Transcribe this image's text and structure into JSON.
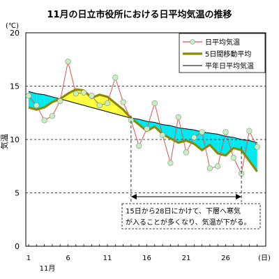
{
  "chart_data": {
    "type": "line",
    "title": "11月の日立市役所における日平均気温の推移",
    "unit_label": "(℃)",
    "ylabel": "気温",
    "x_unit_label": "(日)",
    "x_month_label": "11月",
    "x": [
      1,
      2,
      3,
      4,
      5,
      6,
      7,
      8,
      9,
      10,
      11,
      12,
      13,
      14,
      15,
      16,
      17,
      18,
      19,
      20,
      21,
      22,
      23,
      24,
      25,
      26,
      27,
      28,
      29,
      30
    ],
    "xticks": [
      "1",
      "6",
      "11",
      "16",
      "21",
      "26"
    ],
    "ylim": [
      0,
      20
    ],
    "yticks": [
      0,
      5,
      10,
      15,
      20
    ],
    "grid": "dashed horizontal at 5, 10, 15",
    "legend_position": "top-right",
    "series": [
      {
        "name": "日平均気温",
        "color": "#e05050",
        "marker": "light green circle",
        "values": [
          14.1,
          13.2,
          11.8,
          12.2,
          13.6,
          17.3,
          14.3,
          14.4,
          14.1,
          13.2,
          13.4,
          15.8,
          13.5,
          11.8,
          9.4,
          11.0,
          13.4,
          10.4,
          7.8,
          12.1,
          8.8,
          10.2,
          10.7,
          7.3,
          7.5,
          10.7,
          8.3,
          6.8,
          10.8,
          9.3
        ]
      },
      {
        "name": "5日間移動平均",
        "color": "#8b8b00",
        "values": [
          13.0,
          12.8,
          13.0,
          13.5,
          13.8,
          14.3,
          14.7,
          14.6,
          13.9,
          14.2,
          14.0,
          13.4,
          12.8,
          12.0,
          11.4,
          10.8,
          11.2,
          10.5,
          10.1,
          9.7,
          9.9,
          9.6,
          9.0,
          9.5,
          8.7,
          8.5,
          9.2,
          9.0,
          8.0,
          7.0
        ]
      },
      {
        "name": "平年日平均気温",
        "color": "#000000",
        "values": [
          14.5,
          14.3,
          14.2,
          14.0,
          13.8,
          13.6,
          13.4,
          13.2,
          13.0,
          12.8,
          12.6,
          12.4,
          12.2,
          12.0,
          11.9,
          11.7,
          11.6,
          11.4,
          11.3,
          11.1,
          11.0,
          10.9,
          10.7,
          10.6,
          10.5,
          10.3,
          10.2,
          10.0,
          9.9,
          9.7
        ]
      }
    ],
    "fill_above_normal_color": "#ffff40",
    "fill_below_normal_color": "#00e8f0",
    "annotation": {
      "text_line1": "15日から28日にかけて、下層へ寒気",
      "text_line2": "が入ることが多くなり、気温が下がる。",
      "range": [
        14,
        28
      ]
    }
  }
}
